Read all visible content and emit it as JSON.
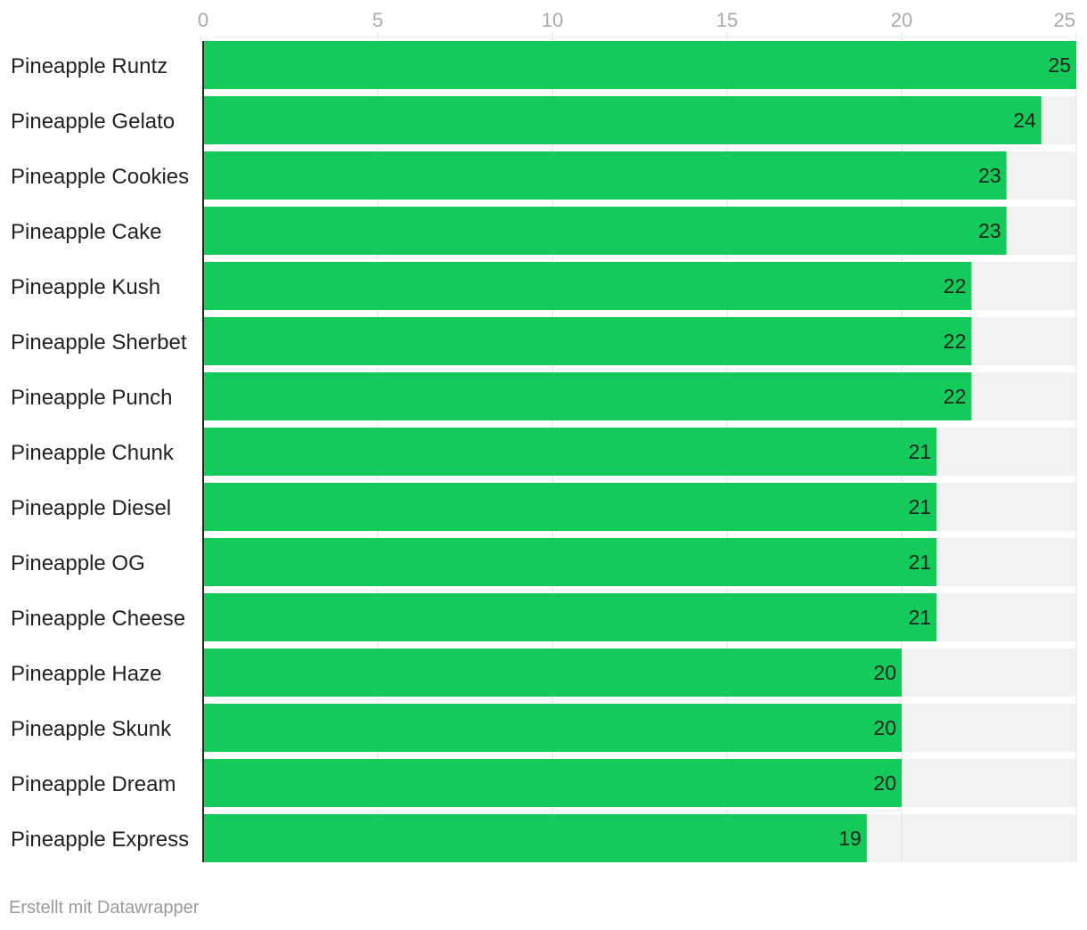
{
  "chart_data": {
    "type": "bar",
    "orientation": "horizontal",
    "categories": [
      "Pineapple Runtz",
      "Pineapple Gelato",
      "Pineapple Cookies",
      "Pineapple Cake",
      "Pineapple Kush",
      "Pineapple Sherbet",
      "Pineapple Punch",
      "Pineapple Chunk",
      "Pineapple Diesel",
      "Pineapple OG",
      "Pineapple Cheese",
      "Pineapple Haze",
      "Pineapple Skunk",
      "Pineapple Dream",
      "Pineapple Express"
    ],
    "values": [
      25,
      24,
      23,
      23,
      22,
      22,
      22,
      21,
      21,
      21,
      21,
      20,
      20,
      20,
      19
    ],
    "xlim": [
      0,
      25
    ],
    "xticks": [
      0,
      5,
      10,
      15,
      20,
      25
    ],
    "grid": true,
    "data_labels": true,
    "colors": {
      "bar": "#13ca5a",
      "track": "#f2f2f2",
      "grid": "#e0e0e0",
      "axis": "#222222"
    }
  },
  "footer": {
    "credit": "Erstellt mit Datawrapper"
  }
}
